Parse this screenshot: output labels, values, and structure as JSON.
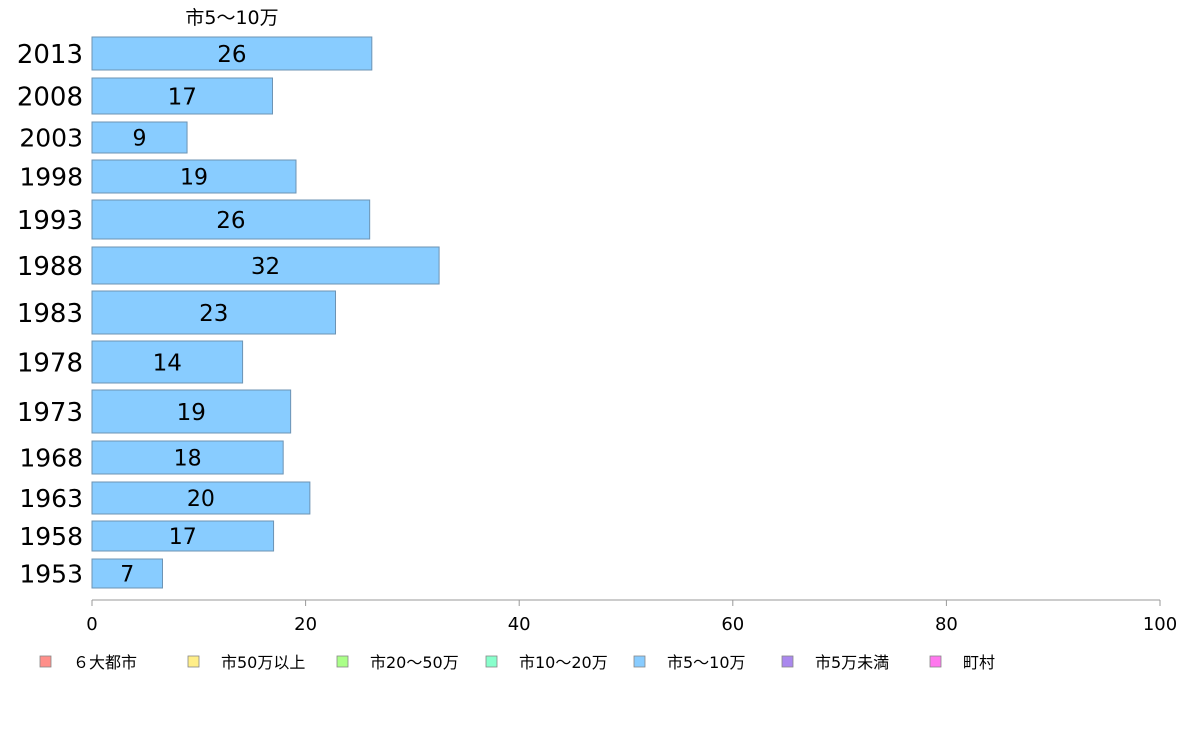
{
  "chart_data": {
    "type": "bar",
    "orientation": "horizontal",
    "title": "市5〜10万",
    "categories": [
      "2013",
      "2008",
      "2003",
      "1998",
      "1993",
      "1988",
      "1983",
      "1978",
      "1973",
      "1968",
      "1963",
      "1958",
      "1953"
    ],
    "series": [
      {
        "name": "市5〜10万",
        "color": "#88ccff",
        "values": [
          26,
          17,
          9,
          19,
          26,
          32,
          23,
          14,
          19,
          18,
          20,
          17,
          7
        ],
        "bar_lengths": [
          26.2,
          16.9,
          8.9,
          19.1,
          26.0,
          32.5,
          22.8,
          14.1,
          18.6,
          17.9,
          20.4,
          17.0,
          6.6
        ]
      }
    ],
    "xlim": [
      0,
      100
    ],
    "x_ticks": [
      "0",
      "20",
      "40",
      "60",
      "80",
      "100"
    ],
    "grid": false,
    "legend_position": "bottom",
    "legend": [
      {
        "label": "６大都市",
        "color": "#ff8f8a"
      },
      {
        "label": "市50万以上",
        "color": "#ffee88"
      },
      {
        "label": "市20〜50万",
        "color": "#aaff88"
      },
      {
        "label": "市10〜20万",
        "color": "#88ffcc"
      },
      {
        "label": "市5〜10万",
        "color": "#88ccff"
      },
      {
        "label": "市5万未満",
        "color": "#aa88ee"
      },
      {
        "label": "町村",
        "color": "#ff77ee"
      }
    ]
  }
}
